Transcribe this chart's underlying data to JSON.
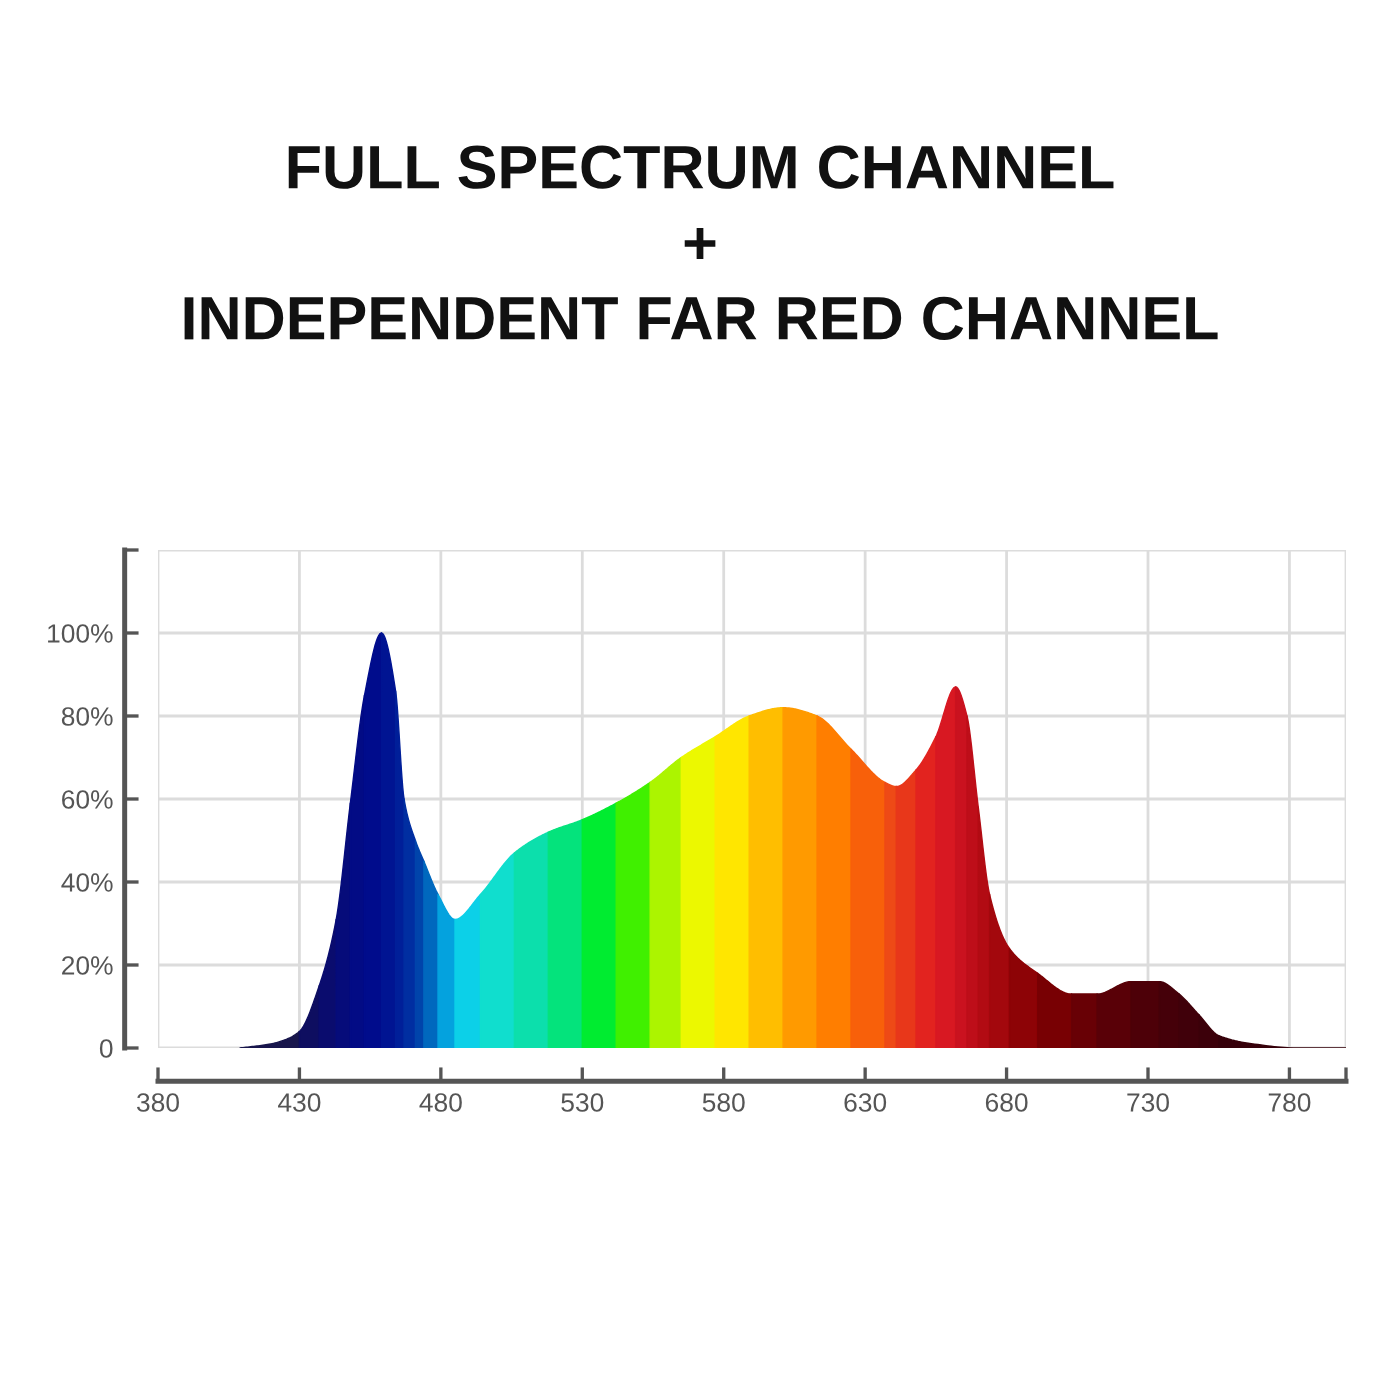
{
  "chart_data": {
    "type": "area",
    "title": "FULL SPECTRUM CHANNEL\n+\nINDEPENDENT FAR RED CHANNEL",
    "series": [
      {
        "x": [
          409,
          420,
          425,
          430
        ],
        "values": [
          0,
          1,
          2,
          4
        ],
        "color": "#18164c"
      },
      {
        "x": [
          430,
          437
        ],
        "values": [
          4,
          15
        ],
        "color": "#0e0e60"
      },
      {
        "x": [
          437,
          443
        ],
        "values": [
          15,
          31
        ],
        "color": "#0a0c6e"
      },
      {
        "x": [
          443,
          448
        ],
        "values": [
          31,
          59
        ],
        "color": "#060c7a"
      },
      {
        "x": [
          448,
          453
        ],
        "values": [
          59,
          85
        ],
        "color": "#020b85"
      },
      {
        "x": [
          453,
          459
        ],
        "values": [
          85,
          100
        ],
        "color": "#000c8c"
      },
      {
        "x": [
          459,
          464
        ],
        "values": [
          100,
          86
        ],
        "color": "#001492"
      },
      {
        "x": [
          464,
          467
        ],
        "values": [
          86,
          60
        ],
        "color": "#001f99"
      },
      {
        "x": [
          467,
          471
        ],
        "values": [
          60,
          50
        ],
        "color": "#002ea1"
      },
      {
        "x": [
          471,
          474
        ],
        "values": [
          50,
          45
        ],
        "color": "#0044ab"
      },
      {
        "x": [
          474,
          479
        ],
        "values": [
          45,
          37
        ],
        "color": "#0068be"
      },
      {
        "x": [
          479,
          485
        ],
        "values": [
          37,
          31
        ],
        "color": "#04a2de"
      },
      {
        "x": [
          485,
          494
        ],
        "values": [
          31,
          37
        ],
        "color": "#0cd0e8"
      },
      {
        "x": [
          494,
          506
        ],
        "values": [
          37,
          47
        ],
        "color": "#10dece"
      },
      {
        "x": [
          506,
          518
        ],
        "values": [
          47,
          52
        ],
        "color": "#0cdfac"
      },
      {
        "x": [
          518,
          530
        ],
        "values": [
          52,
          55
        ],
        "color": "#04e37c"
      },
      {
        "x": [
          530,
          542
        ],
        "values": [
          55,
          59
        ],
        "color": "#00ec30"
      },
      {
        "x": [
          542,
          554
        ],
        "values": [
          59,
          64
        ],
        "color": "#40f000"
      },
      {
        "x": [
          554,
          565
        ],
        "values": [
          64,
          70
        ],
        "color": "#acf400"
      },
      {
        "x": [
          565,
          577
        ],
        "values": [
          70,
          75
        ],
        "color": "#ecf800"
      },
      {
        "x": [
          577,
          589
        ],
        "values": [
          75,
          80
        ],
        "color": "#ffe600"
      },
      {
        "x": [
          589,
          601
        ],
        "values": [
          80,
          82
        ],
        "color": "#ffbe00"
      },
      {
        "x": [
          601,
          613
        ],
        "values": [
          82,
          80
        ],
        "color": "#ff9a00"
      },
      {
        "x": [
          613,
          625
        ],
        "values": [
          80,
          72
        ],
        "color": "#ff7e00"
      },
      {
        "x": [
          625,
          637
        ],
        "values": [
          72,
          64
        ],
        "color": "#f8600a"
      },
      {
        "x": [
          637,
          641
        ],
        "values": [
          64,
          63
        ],
        "color": "#ee4a16"
      },
      {
        "x": [
          641,
          648
        ],
        "values": [
          63,
          67
        ],
        "color": "#e8371a"
      },
      {
        "x": [
          648,
          655
        ],
        "values": [
          67,
          75
        ],
        "color": "#e2231f"
      },
      {
        "x": [
          655,
          662
        ],
        "values": [
          75,
          87
        ],
        "color": "#d81822"
      },
      {
        "x": [
          662,
          666
        ],
        "values": [
          87,
          80
        ],
        "color": "#ca121f"
      },
      {
        "x": [
          666,
          670
        ],
        "values": [
          80,
          58
        ],
        "color": "#be0e19"
      },
      {
        "x": [
          670,
          674
        ],
        "values": [
          58,
          37
        ],
        "color": "#b20b13"
      },
      {
        "x": [
          674,
          681
        ],
        "values": [
          37,
          24
        ],
        "color": "#a3080d"
      },
      {
        "x": [
          681,
          691
        ],
        "values": [
          24,
          18
        ],
        "color": "#8d0306"
      },
      {
        "x": [
          691,
          703
        ],
        "values": [
          18,
          13
        ],
        "color": "#780003"
      },
      {
        "x": [
          703,
          712
        ],
        "values": [
          13,
          13
        ],
        "color": "#680005"
      },
      {
        "x": [
          712,
          724
        ],
        "values": [
          13,
          16
        ],
        "color": "#590007"
      },
      {
        "x": [
          724,
          734
        ],
        "values": [
          16,
          16
        ],
        "color": "#4d0008"
      },
      {
        "x": [
          734,
          741
        ],
        "values": [
          16,
          13
        ],
        "color": "#450009"
      },
      {
        "x": [
          741,
          748
        ],
        "values": [
          13,
          8
        ],
        "color": "#40000a"
      },
      {
        "x": [
          748,
          755
        ],
        "values": [
          8,
          3
        ],
        "color": "#3c000a"
      },
      {
        "x": [
          755,
          767,
          783,
          800
        ],
        "values": [
          3,
          1,
          0,
          0
        ],
        "color": "#36000a"
      }
    ],
    "xlim": [
      380,
      800
    ],
    "ylim": [
      0,
      120
    ],
    "xticks": [
      380,
      430,
      480,
      530,
      580,
      630,
      680,
      730,
      780,
      {
        "value": 800,
        "label": null
      }
    ],
    "yticks": [
      0,
      {
        "value": 20,
        "label": "20%"
      },
      {
        "value": 40,
        "label": "40%"
      },
      {
        "value": 60,
        "label": "60%"
      },
      {
        "value": 80,
        "label": "80%"
      },
      {
        "value": 100,
        "label": "100%"
      },
      {
        "value": 120,
        "label": null
      }
    ],
    "grid": true
  }
}
